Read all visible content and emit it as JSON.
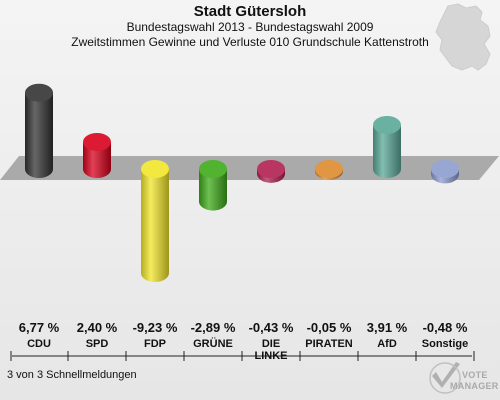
{
  "header": {
    "title": "Stadt Gütersloh",
    "subtitle_1": "Bundestagswahl 2013 - Bundestagswahl 2009",
    "subtitle_2": "Zweitstimmen Gewinne und Verluste 010 Grundschule Kattenstroth"
  },
  "footer": {
    "report_status": "3 von 3 Schnellmeldungen"
  },
  "logo": {
    "line_1": "VOTE",
    "line_2": "MANAGER",
    "icon": "checkmark-icon"
  },
  "chart_data": {
    "type": "bar",
    "title": "Stadt Gütersloh",
    "categories": [
      "CDU",
      "SPD",
      "FDP",
      "GRÜNE",
      "DIE LINKE",
      "PIRATEN",
      "AfD",
      "Sonstige"
    ],
    "category_labels": [
      "CDU",
      "SPD",
      "FDP",
      "GRÜNE",
      "DIE\nLINKE",
      "PIRATEN",
      "AfD",
      "Sonstige"
    ],
    "value_labels": [
      "6,77 %",
      "2,40 %",
      "-9,23 %",
      "-2,89 %",
      "-0,43 %",
      "-0,05 %",
      "3,91 %",
      "-0,48 %"
    ],
    "series": [
      {
        "values": [
          6.77,
          2.4,
          -9.23,
          -2.89,
          -0.43,
          -0.05,
          3.91,
          -0.48
        ]
      }
    ],
    "colors": [
      "#333333",
      "#d8001c",
      "#f2e52a",
      "#3fab1a",
      "#b12052",
      "#dd8a2e",
      "#5aa898",
      "#8c9ccf"
    ],
    "unit": "%",
    "ylim": [
      -9.23,
      6.77
    ],
    "grid": false,
    "legend": "none"
  }
}
